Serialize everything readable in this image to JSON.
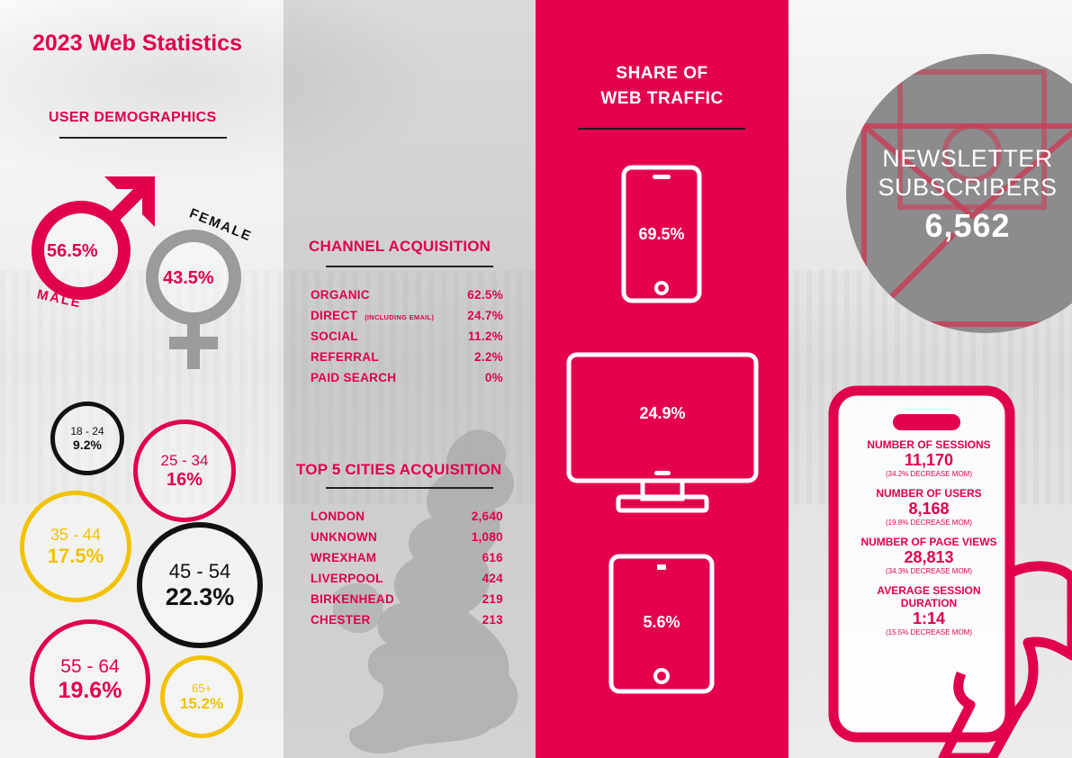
{
  "title": "2023 Web Statistics",
  "demographics": {
    "heading": "USER DEMOGRAPHICS",
    "male": {
      "label": "MALE",
      "value": "56.5%"
    },
    "female": {
      "label": "FEMALE",
      "value": "43.5%"
    },
    "ages": [
      {
        "range": "18 - 24",
        "value": "9.2%",
        "color": "#111111"
      },
      {
        "range": "25 - 34",
        "value": "16%",
        "color": "#e0004d"
      },
      {
        "range": "35 - 44",
        "value": "17.5%",
        "color": "#f2c200"
      },
      {
        "range": "45 - 54",
        "value": "22.3%",
        "color": "#111111"
      },
      {
        "range": "55 - 64",
        "value": "19.6%",
        "color": "#e0004d"
      },
      {
        "range": "65+",
        "value": "15.2%",
        "color": "#f2c200"
      }
    ]
  },
  "channel": {
    "heading": "CHANNEL ACQUISITION",
    "rows": [
      {
        "name": "ORGANIC",
        "sub": "",
        "value": "62.5%"
      },
      {
        "name": "DIRECT",
        "sub": "(INCLUDING EMAIL)",
        "value": "24.7%"
      },
      {
        "name": "SOCIAL",
        "sub": "",
        "value": "11.2%"
      },
      {
        "name": "REFERRAL",
        "sub": "",
        "value": "2.2%"
      },
      {
        "name": "PAID SEARCH",
        "sub": "",
        "value": "0%"
      }
    ]
  },
  "cities": {
    "heading": "TOP 5 CITIES ACQUISITION",
    "rows": [
      {
        "name": "LONDON",
        "value": "2,640"
      },
      {
        "name": "UNKNOWN",
        "value": "1,080"
      },
      {
        "name": "WREXHAM",
        "value": "616"
      },
      {
        "name": "LIVERPOOL",
        "value": "424"
      },
      {
        "name": "BIRKENHEAD",
        "value": "219"
      },
      {
        "name": "CHESTER",
        "value": "213"
      }
    ]
  },
  "traffic": {
    "heading_line1": "SHARE OF",
    "heading_line2": "WEB TRAFFIC",
    "mobile": "69.5%",
    "desktop": "24.9%",
    "tablet": "5.6%"
  },
  "newsletter": {
    "line1": "NEWSLETTER",
    "line2": "SUBSCRIBERS",
    "value": "6,562"
  },
  "stats": [
    {
      "label": "NUMBER OF SESSIONS",
      "value": "11,170",
      "change": "(34.2% DECREASE MOM)"
    },
    {
      "label": "NUMBER OF USERS",
      "value": "8,168",
      "change": "(19.8% DECREASE MOM)"
    },
    {
      "label": "NUMBER OF PAGE VIEWS",
      "value": "28,813",
      "change": "(34.3% DECREASE MOM)"
    },
    {
      "label": "AVERAGE SESSION DURATION",
      "value": "1:14",
      "change": "(15.5% DECREASE MOM)"
    }
  ],
  "colors": {
    "brand_pink": "#e4004f",
    "yellow": "#f2c200",
    "grey": "#8c8c8e",
    "black": "#111111"
  }
}
